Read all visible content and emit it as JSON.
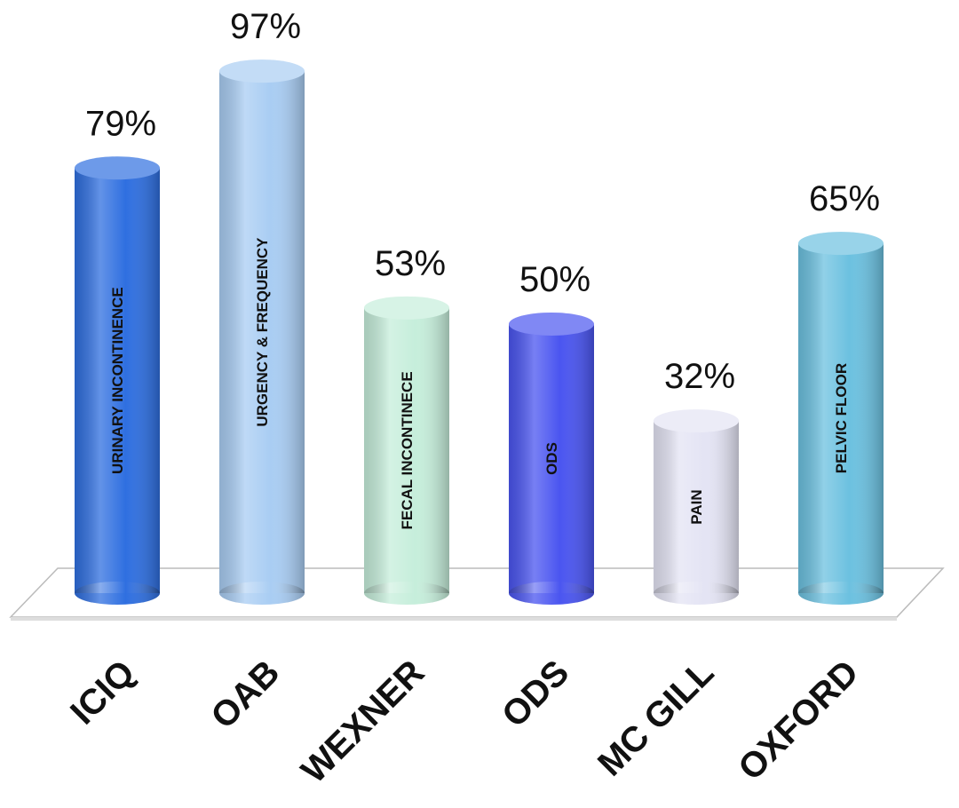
{
  "chart_data": {
    "type": "bar",
    "categories": [
      "ICIQ",
      "OAB",
      "WEXNER",
      "ODS",
      "MC GILL",
      "OXFORD"
    ],
    "values": [
      79,
      97,
      53,
      50,
      32,
      65
    ],
    "value_labels": [
      "79%",
      "97%",
      "53%",
      "50%",
      "32%",
      "65%"
    ],
    "bar_labels": [
      "URINARY INCONTINENCE",
      "URGENCY & FREQUENCY",
      "FECAL INCONTINECE",
      "ODS",
      "PAIN",
      "PELVIC FLOOR"
    ],
    "colors": [
      "#2f6fe0",
      "#a9cdf3",
      "#c6eedb",
      "#4a55f0",
      "#e4e4f4",
      "#6cc1e0"
    ]
  }
}
